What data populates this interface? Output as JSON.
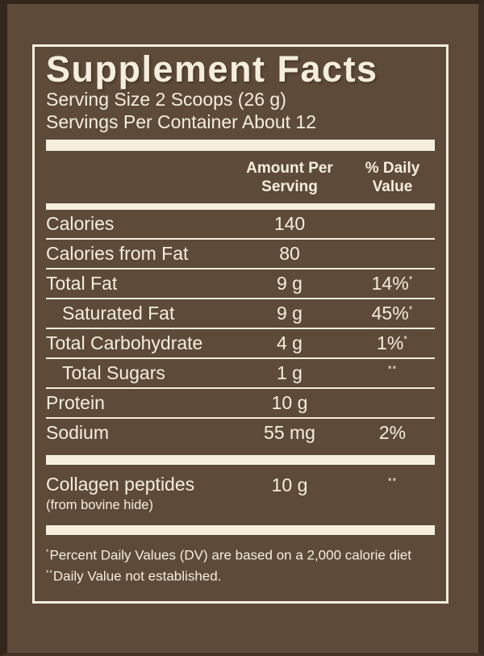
{
  "colors": {
    "background": "#5d4a39",
    "edge": "#33271c",
    "text": "#f5eedd",
    "panel_border": "#f5eedd"
  },
  "label": {
    "title": "Supplement Facts",
    "serving_size": "Serving Size 2 Scoops (26 g)",
    "servings_per_container": "Servings Per Container About 12"
  },
  "table": {
    "headers": {
      "amount": [
        "Amount Per",
        "Serving"
      ],
      "daily_value": [
        "% Daily",
        "Value"
      ]
    },
    "rows": [
      {
        "name": "Calories",
        "amount": "140",
        "dv": "",
        "sup": "",
        "indent": false
      },
      {
        "name": "Calories from Fat",
        "amount": "80",
        "dv": "",
        "sup": "",
        "indent": false
      },
      {
        "name": "Total Fat",
        "amount": "9 g",
        "dv": "14%",
        "sup": "*",
        "indent": false
      },
      {
        "name": "Saturated Fat",
        "amount": "9 g",
        "dv": "45%",
        "sup": "*",
        "indent": true
      },
      {
        "name": "Total Carbohydrate",
        "amount": "4 g",
        "dv": "1%",
        "sup": "*",
        "indent": false
      },
      {
        "name": "Total Sugars",
        "amount": "1 g",
        "dv": "",
        "sup": "**",
        "indent": true
      },
      {
        "name": "Protein",
        "amount": "10 g",
        "dv": "",
        "sup": "",
        "indent": false
      },
      {
        "name": "Sodium",
        "amount": "55 mg",
        "dv": "2%",
        "sup": "",
        "indent": false
      }
    ]
  },
  "collagen_row": {
    "name": "Collagen peptides",
    "source": "(from bovine hide)",
    "amount": "10 g",
    "dv": "",
    "sup": "**"
  },
  "footnotes": [
    {
      "sup": "*",
      "text": "Percent Daily Values (DV) are based on a 2,000 calorie diet"
    },
    {
      "sup": "**",
      "text": "Daily Value not established."
    }
  ]
}
